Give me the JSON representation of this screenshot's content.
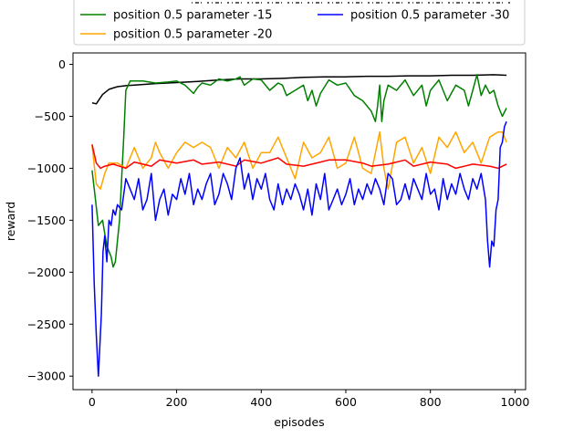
{
  "chart_data": {
    "type": "line",
    "title": "",
    "xlabel": "episodes",
    "ylabel": "reward",
    "xlim": [
      -45,
      1025
    ],
    "ylim": [
      -3130,
      110
    ],
    "x_ticks": [
      0,
      200,
      400,
      600,
      800,
      1000
    ],
    "x_tick_labels": [
      "0",
      "200",
      "400",
      "600",
      "800",
      "1000"
    ],
    "y_ticks": [
      0,
      -500,
      -1000,
      -1500,
      -2000,
      -2500,
      -3000
    ],
    "y_tick_labels": [
      "0",
      "−500",
      "−1000",
      "−1500",
      "−2000",
      "−2500",
      "−3000"
    ],
    "grid": false,
    "legend": {
      "placement": "top, partially clipped above the plot",
      "columns": 2,
      "entries": [
        {
          "label": "position 0.5 parameter -15",
          "color": "#008000"
        },
        {
          "label": "position 0.5 parameter -20",
          "color": "#ffa500"
        },
        {
          "label": "position 0.5 parameter -30",
          "color": "#0000ff"
        }
      ]
    },
    "series": [
      {
        "color": "#000000",
        "x": [
          0,
          10,
          25,
          40,
          60,
          80,
          100,
          150,
          200,
          250,
          300,
          350,
          400,
          450,
          500,
          550,
          600,
          650,
          700,
          750,
          800,
          850,
          900,
          950,
          980
        ],
        "y": [
          -370,
          -380,
          -290,
          -240,
          -215,
          -205,
          -200,
          -185,
          -175,
          -165,
          -150,
          -140,
          -140,
          -135,
          -125,
          -120,
          -120,
          -115,
          -115,
          -110,
          -110,
          -105,
          -105,
          -100,
          -105
        ]
      },
      {
        "name": "position 0.5 parameter -15",
        "color": "#008000",
        "x": [
          0,
          8,
          15,
          25,
          35,
          45,
          50,
          55,
          60,
          65,
          70,
          75,
          80,
          90,
          100,
          120,
          150,
          180,
          200,
          220,
          240,
          250,
          260,
          280,
          300,
          320,
          340,
          350,
          360,
          380,
          400,
          420,
          440,
          450,
          460,
          480,
          500,
          510,
          520,
          530,
          540,
          560,
          580,
          600,
          620,
          640,
          660,
          670,
          675,
          680,
          685,
          690,
          700,
          720,
          740,
          760,
          780,
          790,
          800,
          820,
          840,
          860,
          880,
          890,
          900,
          910,
          920,
          930,
          940,
          950,
          960,
          970,
          980
        ],
        "y": [
          -1020,
          -1300,
          -1550,
          -1500,
          -1750,
          -1850,
          -1950,
          -1900,
          -1700,
          -1500,
          -1100,
          -700,
          -250,
          -160,
          -160,
          -160,
          -180,
          -170,
          -160,
          -200,
          -280,
          -220,
          -180,
          -200,
          -140,
          -160,
          -140,
          -120,
          -200,
          -140,
          -150,
          -250,
          -180,
          -200,
          -300,
          -250,
          -200,
          -350,
          -250,
          -400,
          -280,
          -150,
          -200,
          -180,
          -300,
          -350,
          -450,
          -550,
          -400,
          -200,
          -550,
          -350,
          -200,
          -250,
          -150,
          -300,
          -200,
          -400,
          -250,
          -150,
          -350,
          -200,
          -250,
          -400,
          -250,
          -100,
          -300,
          -200,
          -280,
          -250,
          -400,
          -500,
          -420
        ]
      },
      {
        "name": "position 0.5 parameter -20",
        "color": "#ffa500",
        "x": [
          0,
          10,
          20,
          30,
          40,
          60,
          80,
          100,
          120,
          140,
          150,
          160,
          180,
          200,
          220,
          240,
          260,
          280,
          300,
          320,
          340,
          360,
          380,
          400,
          420,
          440,
          460,
          480,
          500,
          520,
          540,
          560,
          580,
          600,
          620,
          640,
          660,
          680,
          690,
          700,
          720,
          740,
          760,
          780,
          800,
          820,
          840,
          860,
          880,
          900,
          920,
          940,
          960,
          970,
          980
        ],
        "y": [
          -780,
          -1150,
          -1200,
          -1050,
          -950,
          -950,
          -1000,
          -800,
          -1000,
          -900,
          -750,
          -850,
          -1000,
          -850,
          -750,
          -800,
          -750,
          -800,
          -1000,
          -800,
          -900,
          -750,
          -1000,
          -850,
          -850,
          -700,
          -900,
          -1100,
          -750,
          -900,
          -850,
          -700,
          -1000,
          -950,
          -700,
          -1000,
          -1050,
          -650,
          -1000,
          -1200,
          -750,
          -700,
          -950,
          -800,
          -1050,
          -700,
          -800,
          -650,
          -850,
          -750,
          -950,
          -700,
          -650,
          -650,
          -750
        ]
      },
      {
        "name": "",
        "color": "#ff0000",
        "x": [
          0,
          10,
          20,
          30,
          50,
          80,
          100,
          140,
          160,
          200,
          240,
          260,
          300,
          340,
          360,
          400,
          440,
          460,
          500,
          540,
          560,
          600,
          640,
          660,
          700,
          740,
          760,
          800,
          840,
          860,
          900,
          940,
          960,
          980
        ],
        "y": [
          -770,
          -950,
          -1000,
          -980,
          -960,
          -1000,
          -940,
          -980,
          -920,
          -950,
          -920,
          -960,
          -940,
          -980,
          -920,
          -950,
          -900,
          -960,
          -980,
          -940,
          -920,
          -920,
          -950,
          -980,
          -960,
          -920,
          -980,
          -940,
          -960,
          -1000,
          -960,
          -980,
          -1000,
          -960
        ]
      },
      {
        "name": "position 0.5 parameter -30",
        "color": "#0000ff",
        "x": [
          0,
          5,
          10,
          15,
          18,
          22,
          26,
          30,
          35,
          40,
          45,
          50,
          55,
          60,
          70,
          80,
          90,
          100,
          110,
          120,
          130,
          140,
          150,
          160,
          170,
          180,
          190,
          200,
          210,
          220,
          230,
          240,
          250,
          260,
          270,
          280,
          290,
          300,
          310,
          320,
          330,
          340,
          350,
          360,
          370,
          380,
          390,
          400,
          410,
          420,
          430,
          440,
          450,
          460,
          470,
          480,
          490,
          500,
          510,
          520,
          530,
          540,
          550,
          560,
          570,
          580,
          590,
          600,
          610,
          620,
          630,
          640,
          650,
          660,
          670,
          680,
          690,
          700,
          710,
          720,
          730,
          740,
          750,
          760,
          770,
          780,
          790,
          800,
          810,
          820,
          830,
          840,
          850,
          860,
          870,
          880,
          890,
          900,
          910,
          920,
          930,
          935,
          940,
          945,
          950,
          955,
          960,
          965,
          970,
          975,
          980
        ],
        "y": [
          -1350,
          -2100,
          -2600,
          -3000,
          -2750,
          -2400,
          -1800,
          -1650,
          -1900,
          -1500,
          -1550,
          -1400,
          -1450,
          -1350,
          -1400,
          -1100,
          -1200,
          -1300,
          -1100,
          -1400,
          -1300,
          -1050,
          -1500,
          -1300,
          -1200,
          -1450,
          -1250,
          -1300,
          -1100,
          -1250,
          -1050,
          -1350,
          -1200,
          -1300,
          -1150,
          -1050,
          -1350,
          -1250,
          -1050,
          -1150,
          -1300,
          -1000,
          -900,
          -1200,
          -1050,
          -1300,
          -1100,
          -1200,
          -1050,
          -1300,
          -1400,
          -1150,
          -1350,
          -1200,
          -1300,
          -1150,
          -1250,
          -1400,
          -1200,
          -1450,
          -1150,
          -1300,
          -1050,
          -1400,
          -1300,
          -1200,
          -1350,
          -1250,
          -1100,
          -1350,
          -1200,
          -1300,
          -1150,
          -1250,
          -1100,
          -1200,
          -1350,
          -1050,
          -1100,
          -1350,
          -1300,
          -1150,
          -1300,
          -1100,
          -1200,
          -1300,
          -1050,
          -1250,
          -1200,
          -1400,
          -1100,
          -1300,
          -1150,
          -1250,
          -1050,
          -1200,
          -1300,
          -1100,
          -1200,
          -1050,
          -1300,
          -1700,
          -1950,
          -1700,
          -1750,
          -1400,
          -1300,
          -800,
          -750,
          -600,
          -550
        ]
      }
    ]
  }
}
